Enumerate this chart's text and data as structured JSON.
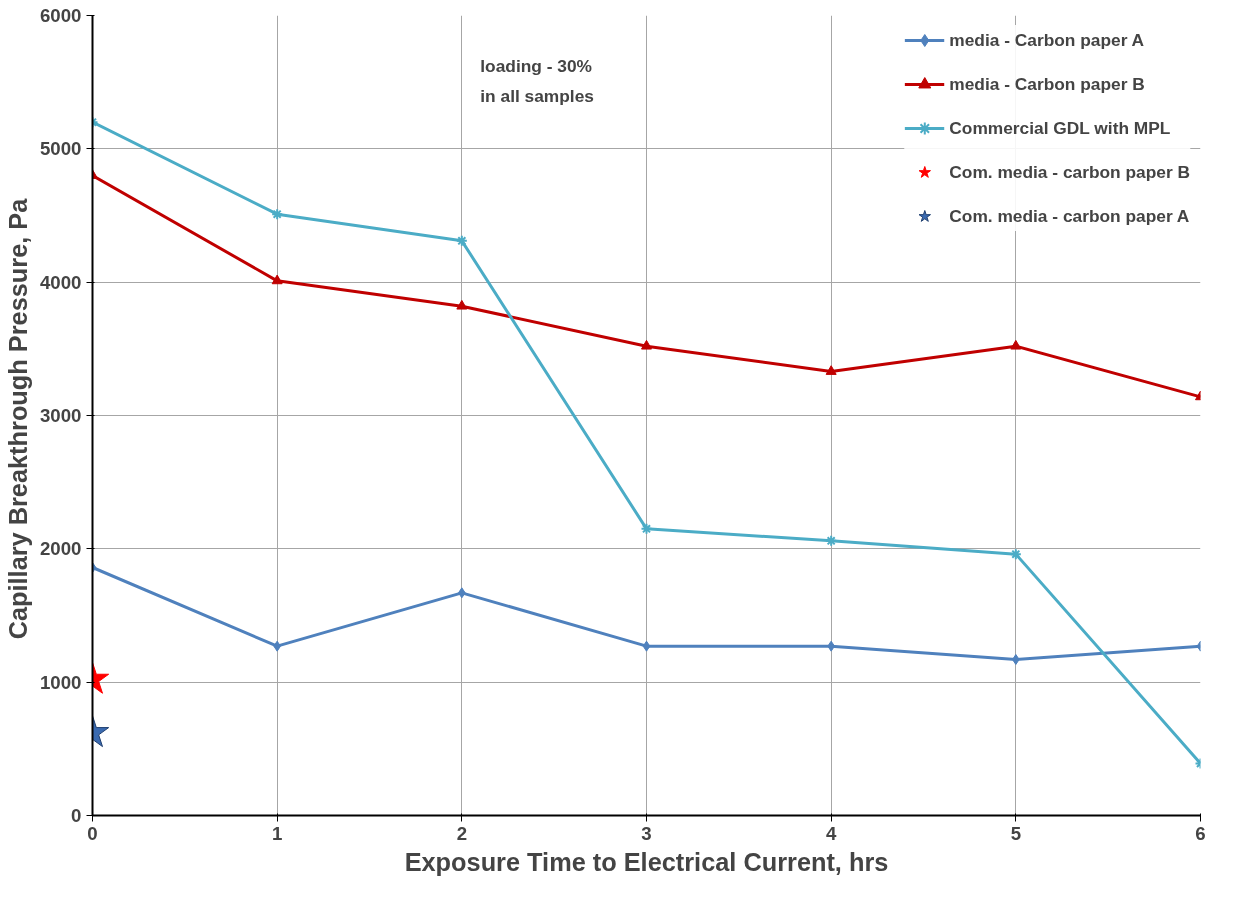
{
  "chart_data": {
    "type": "line",
    "xlabel": "Exposure Time to Electrical Current, hrs",
    "ylabel": "Capillary Breakthrough Pressure,  Pa",
    "x": [
      0,
      1,
      2,
      3,
      4,
      5,
      6
    ],
    "series": [
      {
        "name": "media - Carbon paper A",
        "color": "#4f81bd",
        "marker": "diamond",
        "values": [
          1860,
          1270,
          1670,
          1270,
          1270,
          1170,
          1270
        ]
      },
      {
        "name": "media - Carbon paper B",
        "color": "#c00000",
        "marker": "triangle",
        "values": [
          4800,
          4010,
          3820,
          3520,
          3330,
          3520,
          3140
        ]
      },
      {
        "name": "Commercial GDL with MPL",
        "color": "#4bacc6",
        "marker": "cross",
        "values": [
          5200,
          4510,
          4310,
          2150,
          2060,
          1960,
          390
        ]
      },
      {
        "name": "Com. media - carbon paper B",
        "type": "scatter",
        "marker": "star",
        "color": "#ff0000",
        "x": [
          0
        ],
        "values": [
          1020
        ]
      },
      {
        "name": "Com. media - carbon paper A",
        "type": "scatter",
        "marker": "star",
        "color": "#3a6ab0",
        "x": [
          0
        ],
        "values": [
          620
        ]
      }
    ],
    "xlim": [
      0,
      6
    ],
    "ylim": [
      0,
      6000
    ],
    "xticks": [
      0,
      1,
      2,
      3,
      4,
      5,
      6
    ],
    "yticks": [
      0,
      1000,
      2000,
      3000,
      4000,
      5000,
      6000
    ],
    "grid": true,
    "legend": "top right",
    "annotations": [
      "loading - 30%\nin all samples"
    ]
  }
}
